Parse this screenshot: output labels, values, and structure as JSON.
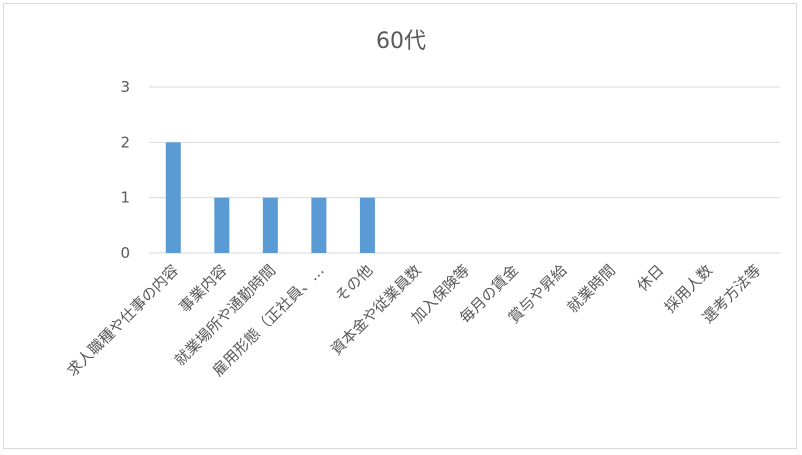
{
  "chart_data": {
    "type": "bar",
    "title": "60代",
    "categories": [
      "求人職種や仕事の内容",
      "事業内容",
      "就業場所や通勤時間",
      "雇用形態（正社員、…",
      "その他",
      "資本金や従業員数",
      "加入保険等",
      "毎月の賃金",
      "賞与や昇給",
      "就業時間",
      "休日",
      "採用人数",
      "選考方法等"
    ],
    "values": [
      2,
      1,
      1,
      1,
      1,
      0,
      0,
      0,
      0,
      0,
      0,
      0,
      0
    ],
    "yticks": [
      0,
      1,
      2,
      3
    ],
    "ylim": [
      0,
      3
    ],
    "xlabel": "",
    "ylabel": "",
    "legend": "none",
    "grid": true,
    "colors": {
      "bar": "#5b9bd5",
      "grid": "#d9d9d9",
      "text": "#595959"
    }
  }
}
